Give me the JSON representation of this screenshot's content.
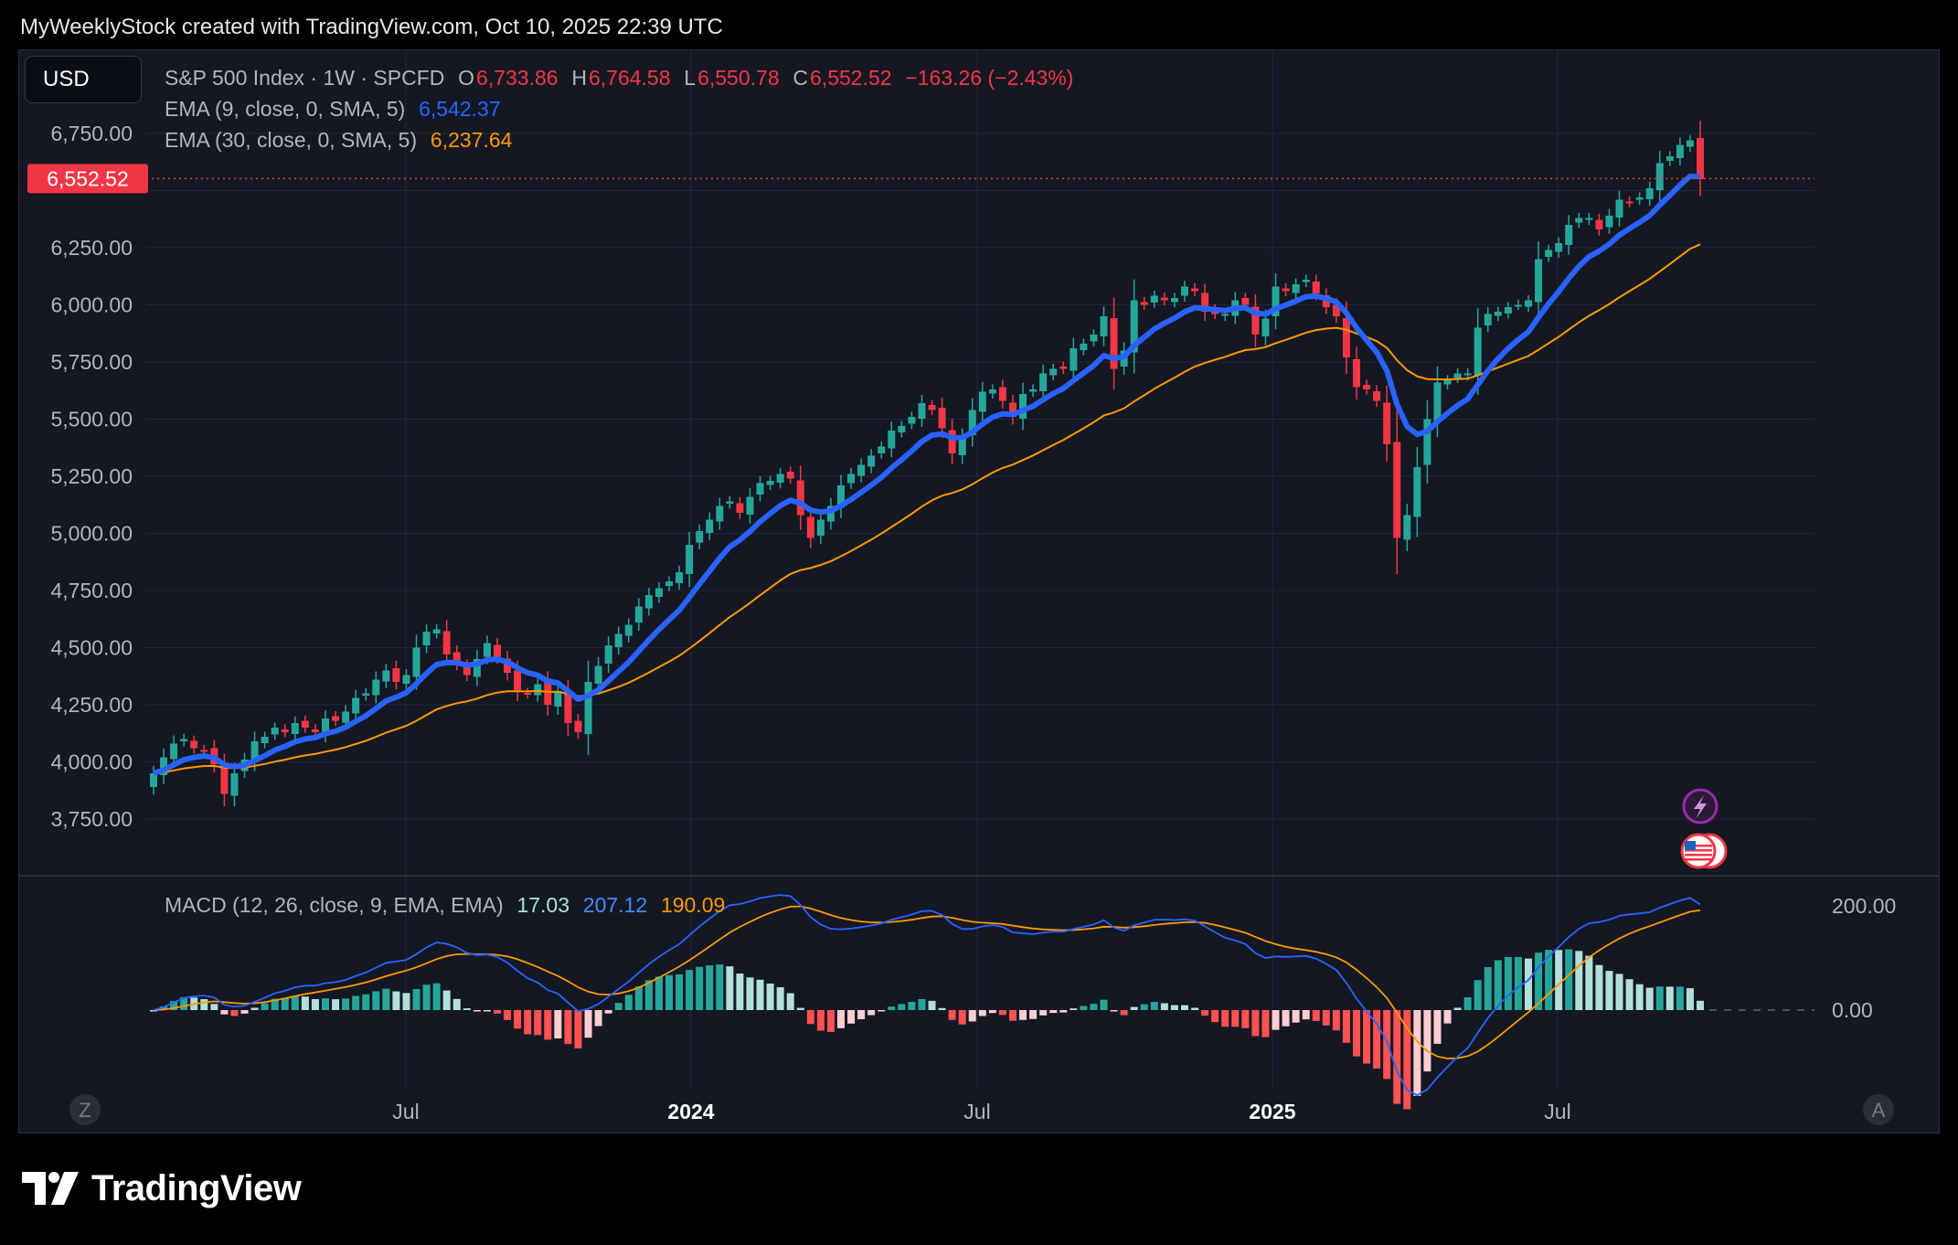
{
  "header": {
    "attribution": "MyWeeklyStock created with TradingView.com, Oct 10, 2025 22:39 UTC"
  },
  "toolbar": {
    "currency": "USD"
  },
  "legend": {
    "symbol": "S&P 500 Index · 1W · SPCFD",
    "o_label": "O",
    "o_value": "6,733.86",
    "h_label": "H",
    "h_value": "6,764.58",
    "l_label": "L",
    "l_value": "6,550.78",
    "c_label": "C",
    "c_value": "6,552.52",
    "change": "−163.26 (−2.43%)",
    "ema9_label": "EMA (9, close, 0, SMA, 5)",
    "ema9_value": "6,542.37",
    "ema30_label": "EMA (30, close, 0, SMA, 5)",
    "ema30_value": "6,237.64",
    "macd_label": "MACD (12, 26, close, 9, EMA, EMA)",
    "macd_hist": "17.03",
    "macd_line": "207.12",
    "macd_signal": "190.09"
  },
  "price_badge": "6,552.52",
  "scale_buttons": {
    "left": "Z",
    "right": "A"
  },
  "branding": {
    "logo_text": "TradingView"
  },
  "colors": {
    "up": "#26a69a",
    "down": "#f23645",
    "ema9": "#2962ff",
    "ema30": "#ff9800",
    "background": "#141823",
    "grid": "#232837"
  },
  "chart_data": [
    {
      "type": "candlestick",
      "title": "S&P 500 Index · 1W · SPCFD",
      "yaxis_ticks": [
        "3,750.00",
        "4,000.00",
        "4,250.00",
        "4,500.00",
        "4,750.00",
        "5,000.00",
        "5,250.00",
        "5,500.00",
        "5,750.00",
        "6,000.00",
        "6,250.00",
        "6,750.00"
      ],
      "xaxis_ticks": [
        "Jul",
        "2024",
        "Jul",
        "2025",
        "Jul"
      ],
      "ylim": [
        3700,
        6800
      ],
      "last_price": 6552.52,
      "series": [
        {
          "name": "EMA (9, close, 0, SMA, 5)",
          "last_value": 6542.37
        },
        {
          "name": "EMA (30, close, 0, SMA, 5)",
          "last_value": 6237.64
        }
      ],
      "closes": [
        3950,
        4020,
        4080,
        4100,
        4060,
        4050,
        3990,
        3860,
        3950,
        4010,
        4090,
        4110,
        4150,
        4130,
        4170,
        4150,
        4130,
        4190,
        4180,
        4220,
        4280,
        4300,
        4360,
        4400,
        4350,
        4380,
        4500,
        4570,
        4580,
        4470,
        4430,
        4380,
        4450,
        4520,
        4460,
        4390,
        4310,
        4300,
        4340,
        4250,
        4310,
        4170,
        4130,
        4350,
        4420,
        4510,
        4560,
        4600,
        4680,
        4730,
        4760,
        4790,
        4830,
        4950,
        5010,
        5060,
        5120,
        5140,
        5090,
        5160,
        5220,
        5230,
        5260,
        5240,
        5080,
        4980,
        5060,
        5120,
        5210,
        5260,
        5300,
        5340,
        5380,
        5450,
        5470,
        5510,
        5570,
        5540,
        5460,
        5350,
        5420,
        5540,
        5620,
        5630,
        5580,
        5510,
        5610,
        5630,
        5700,
        5720,
        5720,
        5810,
        5830,
        5870,
        5950,
        5720,
        5800,
        6020,
        6000,
        6040,
        6020,
        6030,
        6080,
        6060,
        5970,
        5960,
        5960,
        6020,
        6000,
        5870,
        5940,
        6080,
        6060,
        6090,
        6110,
        6050,
        5990,
        5950,
        5770,
        5640,
        5630,
        5580,
        5390,
        4980,
        5080,
        5290,
        5500,
        5660,
        5670,
        5700,
        5700,
        5900,
        5960,
        5970,
        5990,
        6000,
        6020,
        6200,
        6240,
        6270,
        6350,
        6380,
        6380,
        6330,
        6390,
        6460,
        6450,
        6470,
        6510,
        6620,
        6650,
        6700,
        6720,
        6550
      ],
      "macd": {
        "ylim_label": [
          "200.00",
          "0.00"
        ]
      }
    }
  ]
}
